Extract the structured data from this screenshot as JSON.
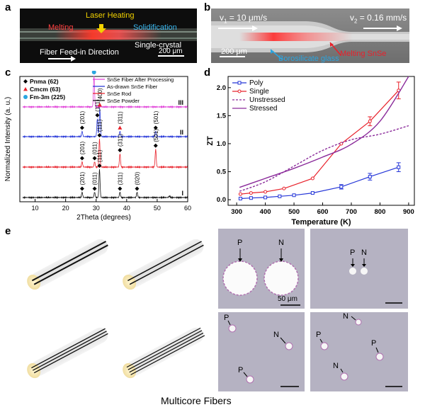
{
  "panels": [
    "a",
    "b",
    "c",
    "d",
    "e"
  ],
  "panel_a": {
    "laser_label": "Laser Heating",
    "melting_label": "Melting",
    "solidification_label": "Solidification",
    "single_crystal_label": "Single-crystal",
    "feed_label": "Fiber Feed-in Direction",
    "scale_label": "200 μm"
  },
  "panel_b": {
    "v1_label": "v",
    "v1_sub": "1",
    "v1_value": "= 10 μm/s",
    "v2_label": "v",
    "v2_sub": "2",
    "v2_value": "= 0.16 mm/s",
    "scale_label": "200 μm",
    "glass_label": "Borosilicate glass",
    "melt_label": "Melting SnSe"
  },
  "chart_data": [
    {
      "type": "line",
      "id": "xrd",
      "xlabel": "2Theta (degrees)",
      "ylabel": "Normalized Intensity (a. u.)",
      "xlim": [
        5,
        60
      ],
      "x_ticks": [
        10,
        20,
        30,
        40,
        50,
        60
      ],
      "legend_markers": [
        {
          "symbol": "diamond",
          "label": "Pnma (62)",
          "color": "#000000"
        },
        {
          "symbol": "triangle",
          "label": "Cmcm (63)",
          "color": "#e8202a"
        },
        {
          "symbol": "circle",
          "label": "Fm-3m (225)",
          "color": "#2aa5e0"
        }
      ],
      "series": [
        {
          "name": "SnSe Fiber After Processing",
          "color": "#e040d8",
          "roman": "III",
          "peaks": [
            {
              "x": 29.3,
              "label": "(200)",
              "marker": "circle"
            }
          ]
        },
        {
          "name": "As-drawn SnSe Fiber",
          "color": "#2536d8",
          "roman": "II",
          "peaks": [
            {
              "x": 25.4,
              "label": "(201)",
              "marker": "diamond"
            },
            {
              "x": 30.4,
              "label": "(111)",
              "marker": "diamond"
            },
            {
              "x": 31.2,
              "label": "(400)",
              "marker": "triangle"
            },
            {
              "x": 37.8,
              "label": "(311)",
              "marker": "triangle"
            },
            {
              "x": 49.5,
              "label": "(501)",
              "marker": "diamond"
            }
          ]
        },
        {
          "name": "SnSe Rod",
          "color": "#e8202a",
          "roman": "",
          "peaks": [
            {
              "x": 25.4,
              "label": "(201)",
              "marker": "diamond"
            },
            {
              "x": 29.5,
              "label": "(011)",
              "marker": "diamond"
            },
            {
              "x": 31.1,
              "label": "(111)",
              "marker": "diamond"
            },
            {
              "x": 37.8,
              "label": "(311)",
              "marker": "diamond"
            },
            {
              "x": 49.5,
              "label": "(501)",
              "marker": "diamond"
            }
          ]
        },
        {
          "name": "SnSe Powder",
          "color": "#111111",
          "roman": "I",
          "peaks": [
            {
              "x": 25.4,
              "label": "(201)",
              "marker": "diamond"
            },
            {
              "x": 29.5,
              "label": "(011)",
              "marker": "diamond"
            },
            {
              "x": 31.1,
              "label": "(111)",
              "marker": "diamond"
            },
            {
              "x": 37.8,
              "label": "(311)",
              "marker": "diamond"
            },
            {
              "x": 43.4,
              "label": "(020)",
              "marker": "diamond"
            }
          ]
        }
      ]
    },
    {
      "type": "line",
      "id": "zt",
      "xlabel": "Temperature (K)",
      "ylabel": "ZT",
      "xlim": [
        270,
        920
      ],
      "ylim": [
        -0.1,
        2.2
      ],
      "x_ticks": [
        300,
        400,
        500,
        600,
        700,
        800,
        900
      ],
      "y_ticks": [
        0.0,
        0.5,
        1.0,
        1.5,
        2.0
      ],
      "legend_position": "top-left",
      "series": [
        {
          "name": "Poly",
          "color": "#2536d8",
          "marker": "square",
          "x": [
            313,
            350,
            400,
            450,
            500,
            565,
            665,
            765,
            865
          ],
          "y": [
            0.02,
            0.03,
            0.04,
            0.06,
            0.08,
            0.12,
            0.23,
            0.41,
            0.58
          ],
          "err": [
            0,
            0,
            0,
            0,
            0,
            0,
            0.04,
            0.06,
            0.08
          ]
        },
        {
          "name": "Single",
          "color": "#e8202a",
          "marker": "circle",
          "x": [
            313,
            350,
            400,
            465,
            565,
            665,
            765,
            865
          ],
          "y": [
            0.1,
            0.12,
            0.14,
            0.2,
            0.38,
            1.0,
            1.4,
            1.95
          ],
          "err": [
            0,
            0,
            0,
            0,
            0,
            0,
            0.08,
            0.15
          ]
        },
        {
          "name": "Unstressed",
          "color": "#8a2a9a",
          "dashed": true,
          "x": [
            310,
            400,
            500,
            600,
            700,
            800,
            900
          ],
          "y": [
            0.15,
            0.32,
            0.6,
            0.88,
            1.07,
            1.17,
            1.32
          ]
        },
        {
          "name": "Stressed",
          "color": "#8a2a9a",
          "dashed": false,
          "x": [
            310,
            400,
            500,
            600,
            700,
            800,
            900
          ],
          "y": [
            0.22,
            0.38,
            0.56,
            0.76,
            0.99,
            1.4,
            2.2
          ]
        }
      ]
    }
  ],
  "panel_e": {
    "caption": "Multicore Fibers",
    "p_label": "P",
    "n_label": "N",
    "scale_label": "50 μm"
  }
}
